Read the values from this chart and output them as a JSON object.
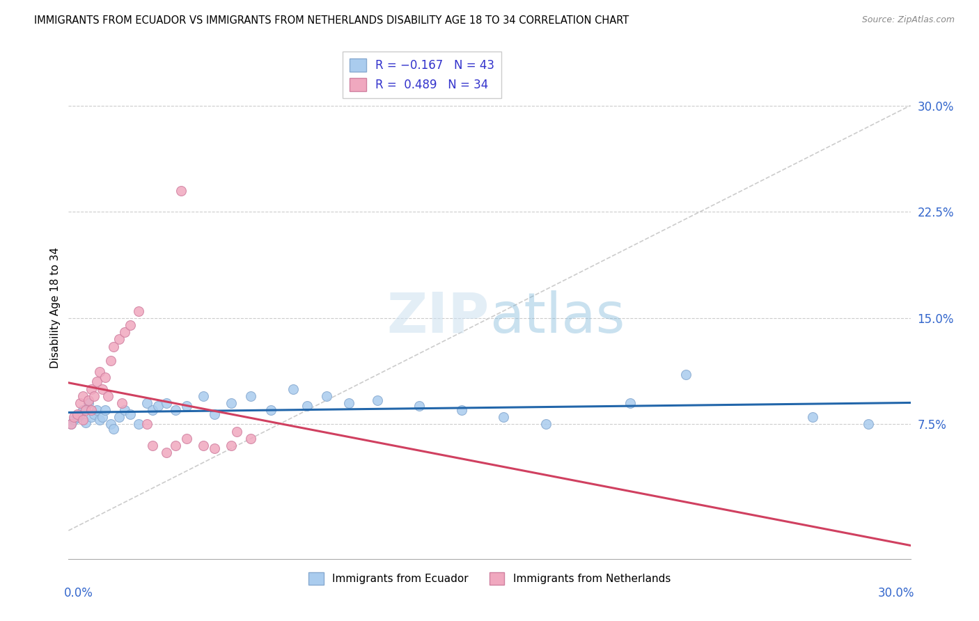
{
  "title": "IMMIGRANTS FROM ECUADOR VS IMMIGRANTS FROM NETHERLANDS DISABILITY AGE 18 TO 34 CORRELATION CHART",
  "source": "Source: ZipAtlas.com",
  "ylabel": "Disability Age 18 to 34",
  "ylabel_right_positions": [
    0.075,
    0.15,
    0.225,
    0.3
  ],
  "ylabel_right_labels": [
    "7.5%",
    "15.0%",
    "22.5%",
    "30.0%"
  ],
  "xmin": 0.0,
  "xmax": 0.3,
  "ymin": -0.02,
  "ymax": 0.335,
  "ecuador_color": "#aaccee",
  "netherlands_color": "#f0a8bf",
  "ecuador_line_color": "#2266aa",
  "netherlands_line_color": "#d04060",
  "diagonal_color": "#cccccc",
  "ecuador_R": -0.167,
  "ecuador_N": 43,
  "netherlands_R": 0.489,
  "netherlands_N": 34,
  "ecuador_points_x": [
    0.001,
    0.002,
    0.003,
    0.004,
    0.005,
    0.006,
    0.007,
    0.008,
    0.009,
    0.01,
    0.011,
    0.012,
    0.013,
    0.015,
    0.016,
    0.018,
    0.02,
    0.022,
    0.025,
    0.028,
    0.03,
    0.032,
    0.035,
    0.038,
    0.042,
    0.048,
    0.052,
    0.058,
    0.065,
    0.072,
    0.08,
    0.085,
    0.092,
    0.1,
    0.11,
    0.125,
    0.14,
    0.155,
    0.17,
    0.2,
    0.22,
    0.265,
    0.285
  ],
  "ecuador_points_y": [
    0.075,
    0.078,
    0.08,
    0.082,
    0.085,
    0.076,
    0.09,
    0.08,
    0.082,
    0.085,
    0.078,
    0.08,
    0.085,
    0.075,
    0.072,
    0.08,
    0.085,
    0.082,
    0.075,
    0.09,
    0.085,
    0.088,
    0.09,
    0.085,
    0.088,
    0.095,
    0.082,
    0.09,
    0.095,
    0.085,
    0.1,
    0.088,
    0.095,
    0.09,
    0.092,
    0.088,
    0.085,
    0.08,
    0.075,
    0.09,
    0.11,
    0.08,
    0.075
  ],
  "netherlands_points_x": [
    0.001,
    0.002,
    0.003,
    0.004,
    0.005,
    0.005,
    0.006,
    0.007,
    0.008,
    0.008,
    0.009,
    0.01,
    0.011,
    0.012,
    0.013,
    0.014,
    0.015,
    0.016,
    0.018,
    0.019,
    0.02,
    0.022,
    0.025,
    0.028,
    0.03,
    0.035,
    0.038,
    0.042,
    0.048,
    0.052,
    0.058,
    0.04,
    0.06,
    0.065
  ],
  "netherlands_points_y": [
    0.075,
    0.08,
    0.082,
    0.09,
    0.095,
    0.078,
    0.085,
    0.092,
    0.085,
    0.1,
    0.095,
    0.105,
    0.112,
    0.1,
    0.108,
    0.095,
    0.12,
    0.13,
    0.135,
    0.09,
    0.14,
    0.145,
    0.155,
    0.075,
    0.06,
    0.055,
    0.06,
    0.065,
    0.06,
    0.058,
    0.06,
    0.24,
    0.07,
    0.065
  ]
}
